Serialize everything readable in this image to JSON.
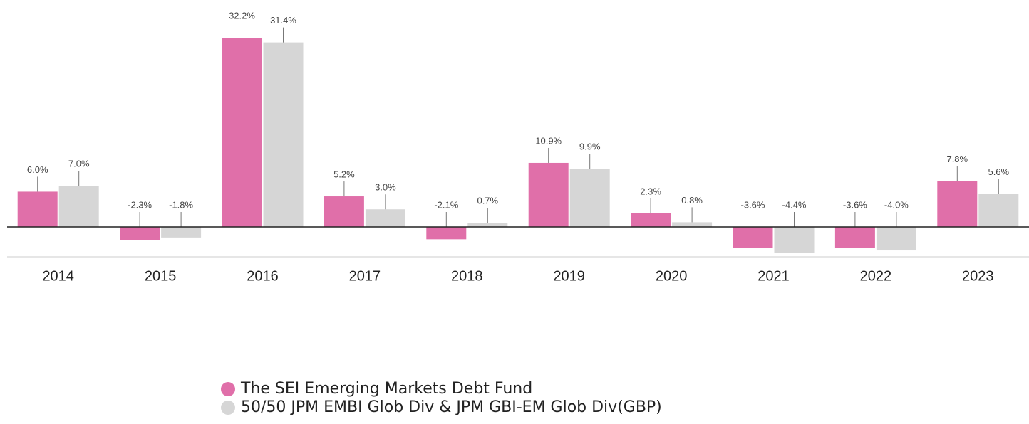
{
  "chart_data": {
    "type": "bar",
    "categories": [
      "2014",
      "2015",
      "2016",
      "2017",
      "2018",
      "2019",
      "2020",
      "2021",
      "2022",
      "2023"
    ],
    "series": [
      {
        "name": "The SEI Emerging Markets Debt Fund",
        "color": "#e06fa9",
        "values": [
          6.0,
          -2.3,
          32.2,
          5.2,
          -2.1,
          10.9,
          2.3,
          -3.6,
          -3.6,
          7.8
        ],
        "value_labels": [
          "6.0%",
          "-2.3%",
          "32.2%",
          "5.2%",
          "-2.1%",
          "10.9%",
          "2.3%",
          "-3.6%",
          "-3.6%",
          "7.8%"
        ]
      },
      {
        "name": "50/50 JPM EMBI Glob Div & JPM GBI-EM Glob Div(GBP)",
        "color": "#d6d6d6",
        "values": [
          7.0,
          -1.8,
          31.4,
          3.0,
          0.7,
          9.9,
          0.8,
          -4.4,
          -4.0,
          5.6
        ],
        "value_labels": [
          "7.0%",
          "-1.8%",
          "31.4%",
          "3.0%",
          "0.7%",
          "9.9%",
          "0.8%",
          "-4.4%",
          "-4.0%",
          "5.6%"
        ]
      }
    ]
  }
}
